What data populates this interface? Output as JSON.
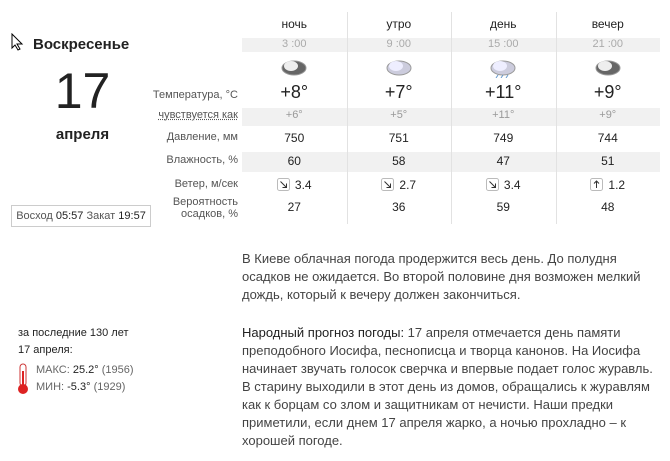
{
  "day": {
    "weekday": "Воскресенье",
    "date": "17",
    "month": "апреля"
  },
  "sun": {
    "rise_label": "Восход",
    "rise": "05:57",
    "set_label": "Закат",
    "set": "19:57"
  },
  "table": {
    "columns": [
      {
        "name": "ночь",
        "time": "3 :00"
      },
      {
        "name": "утро",
        "time": "9 :00"
      },
      {
        "name": "день",
        "time": "15 :00"
      },
      {
        "name": "вечер",
        "time": "21 :00"
      }
    ],
    "rows": [
      {
        "label": "Температура, °C",
        "values": [
          "+8°",
          "+7°",
          "+11°",
          "+9°"
        ]
      },
      {
        "label": "чувствуется как",
        "values": [
          "+6°",
          "+5°",
          "+11°",
          "+9°"
        ]
      },
      {
        "label": "Давление, мм",
        "values": [
          "750",
          "751",
          "749",
          "744"
        ]
      },
      {
        "label": "Влажность, %",
        "values": [
          "60",
          "58",
          "47",
          "51"
        ]
      },
      {
        "label": "Ветер, м/сек",
        "values": [
          "3.4",
          "2.7",
          "3.4",
          "1.2"
        ]
      },
      {
        "label": "Вероятность осадков, %",
        "values": [
          "27",
          "36",
          "59",
          "48"
        ]
      }
    ]
  },
  "history": {
    "line1": "за последние 130 лет",
    "line2": "17 апреля:",
    "max_label": "МАКС:",
    "max": "25.2°",
    "max_year": "(1956)",
    "min_label": "МИН:",
    "min": "-5.3°",
    "min_year": "(1929)"
  },
  "forecast": "В Киеве облачная погода продержится весь день. До полудня осадков не ожидается. Во второй половине дня возможен мелкий дождь, который к вечеру должен закончиться.",
  "folk": {
    "title": "Народный прогноз погоды:",
    "text": " 17 апреля отмечается день памяти преподобного Иосифа, песнописца и творца канонов. На Иосифа начинает звучать голосок сверчка и впервые подает голос журавль. В старину выходили в этот день из домов, обращались к журавлям как к борцам со злом и защитникам от нечисти. Наши предки приметили, если днем 17 апреля жарко, а ночью прохладно – к хорошей погоде."
  }
}
